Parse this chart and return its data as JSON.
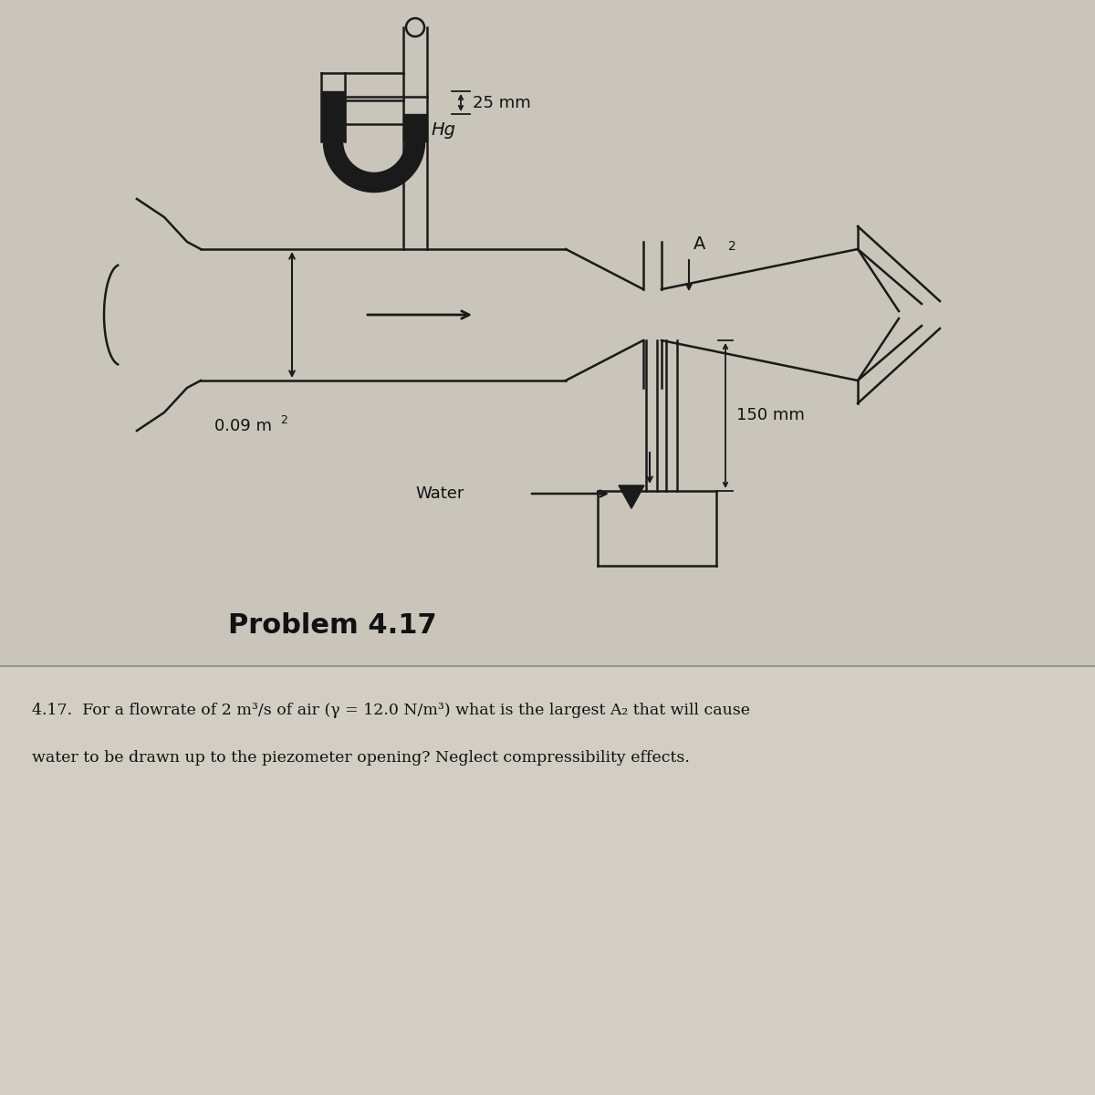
{
  "bg_color_top": "#c9c5ba",
  "bg_color_bottom": "#d2cec3",
  "line_color": "#1a1a1a",
  "text_color": "#111111",
  "title": "Problem 4.17",
  "problem_text_1": "4.17.  For a flowrate of 2 m",
  "problem_text_2": "3",
  "problem_text_3": "/s of air (γ = 12.0 N/m",
  "problem_text_4": "3",
  "problem_text_5": ") what is the largest A",
  "problem_text_6": "2",
  "problem_text_7": " that will cause",
  "problem_text_line2": "water to be drawn up to the piezometer opening? Neglect compressibility effects.",
  "label_25mm": "25 mm",
  "label_hg": "Hg",
  "label_A2": "A",
  "label_area": "0.09 m",
  "label_150mm": "150 mm",
  "label_water": "Water"
}
